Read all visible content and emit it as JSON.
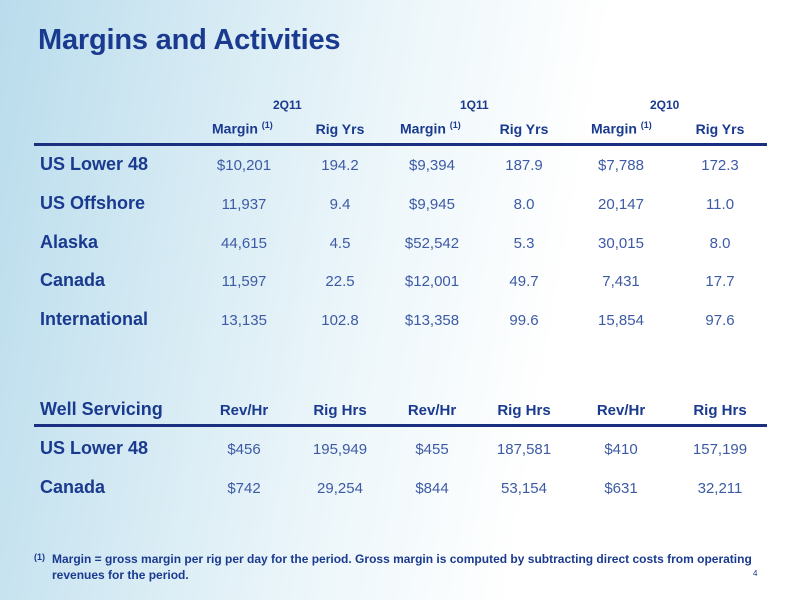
{
  "title": "Margins and Activities",
  "periods": [
    "2Q11",
    "1Q11",
    "2Q10"
  ],
  "activity_table": {
    "column_headers": [
      {
        "label": "Margin",
        "sup": "(1)"
      },
      {
        "label": "Rig Yrs"
      },
      {
        "label": "Margin",
        "sup": "(1)"
      },
      {
        "label": "Rig Yrs"
      },
      {
        "label": "Margin",
        "sup": "(1)"
      },
      {
        "label": "Rig Yrs"
      }
    ],
    "rows": [
      {
        "label": "US Lower 48",
        "values": [
          "$10,201",
          "194.2",
          "$9,394",
          "187.9",
          "$7,788",
          "172.3"
        ]
      },
      {
        "label": "US Offshore",
        "values": [
          "11,937",
          "9.4",
          "$9,945",
          "8.0",
          "20,147",
          "11.0"
        ]
      },
      {
        "label": "Alaska",
        "values": [
          "44,615",
          "4.5",
          "$52,542",
          "5.3",
          "30,015",
          "8.0"
        ]
      },
      {
        "label": "Canada",
        "values": [
          "11,597",
          "22.5",
          "$12,001",
          "49.7",
          "7,431",
          "17.7"
        ]
      },
      {
        "label": "International",
        "values": [
          "13,135",
          "102.8",
          "$13,358",
          "99.6",
          "15,854",
          "97.6"
        ]
      }
    ]
  },
  "well_servicing": {
    "title": "Well Servicing",
    "column_headers": [
      "Rev/Hr",
      "Rig Hrs",
      "Rev/Hr",
      "Rig Hrs",
      "Rev/Hr",
      "Rig Hrs"
    ],
    "rows": [
      {
        "label": "US Lower 48",
        "values": [
          "$456",
          "195,949",
          "$455",
          "187,581",
          "$410",
          "157,199"
        ]
      },
      {
        "label": "Canada",
        "values": [
          "$742",
          "29,254",
          "$844",
          "53,154",
          "$631",
          "32,211"
        ]
      }
    ]
  },
  "footnote": {
    "marker": "(1)",
    "text": "Margin = gross margin per rig per day for the period.  Gross margin is computed by subtracting direct costs from operating revenues for the period."
  },
  "page_number": "4"
}
